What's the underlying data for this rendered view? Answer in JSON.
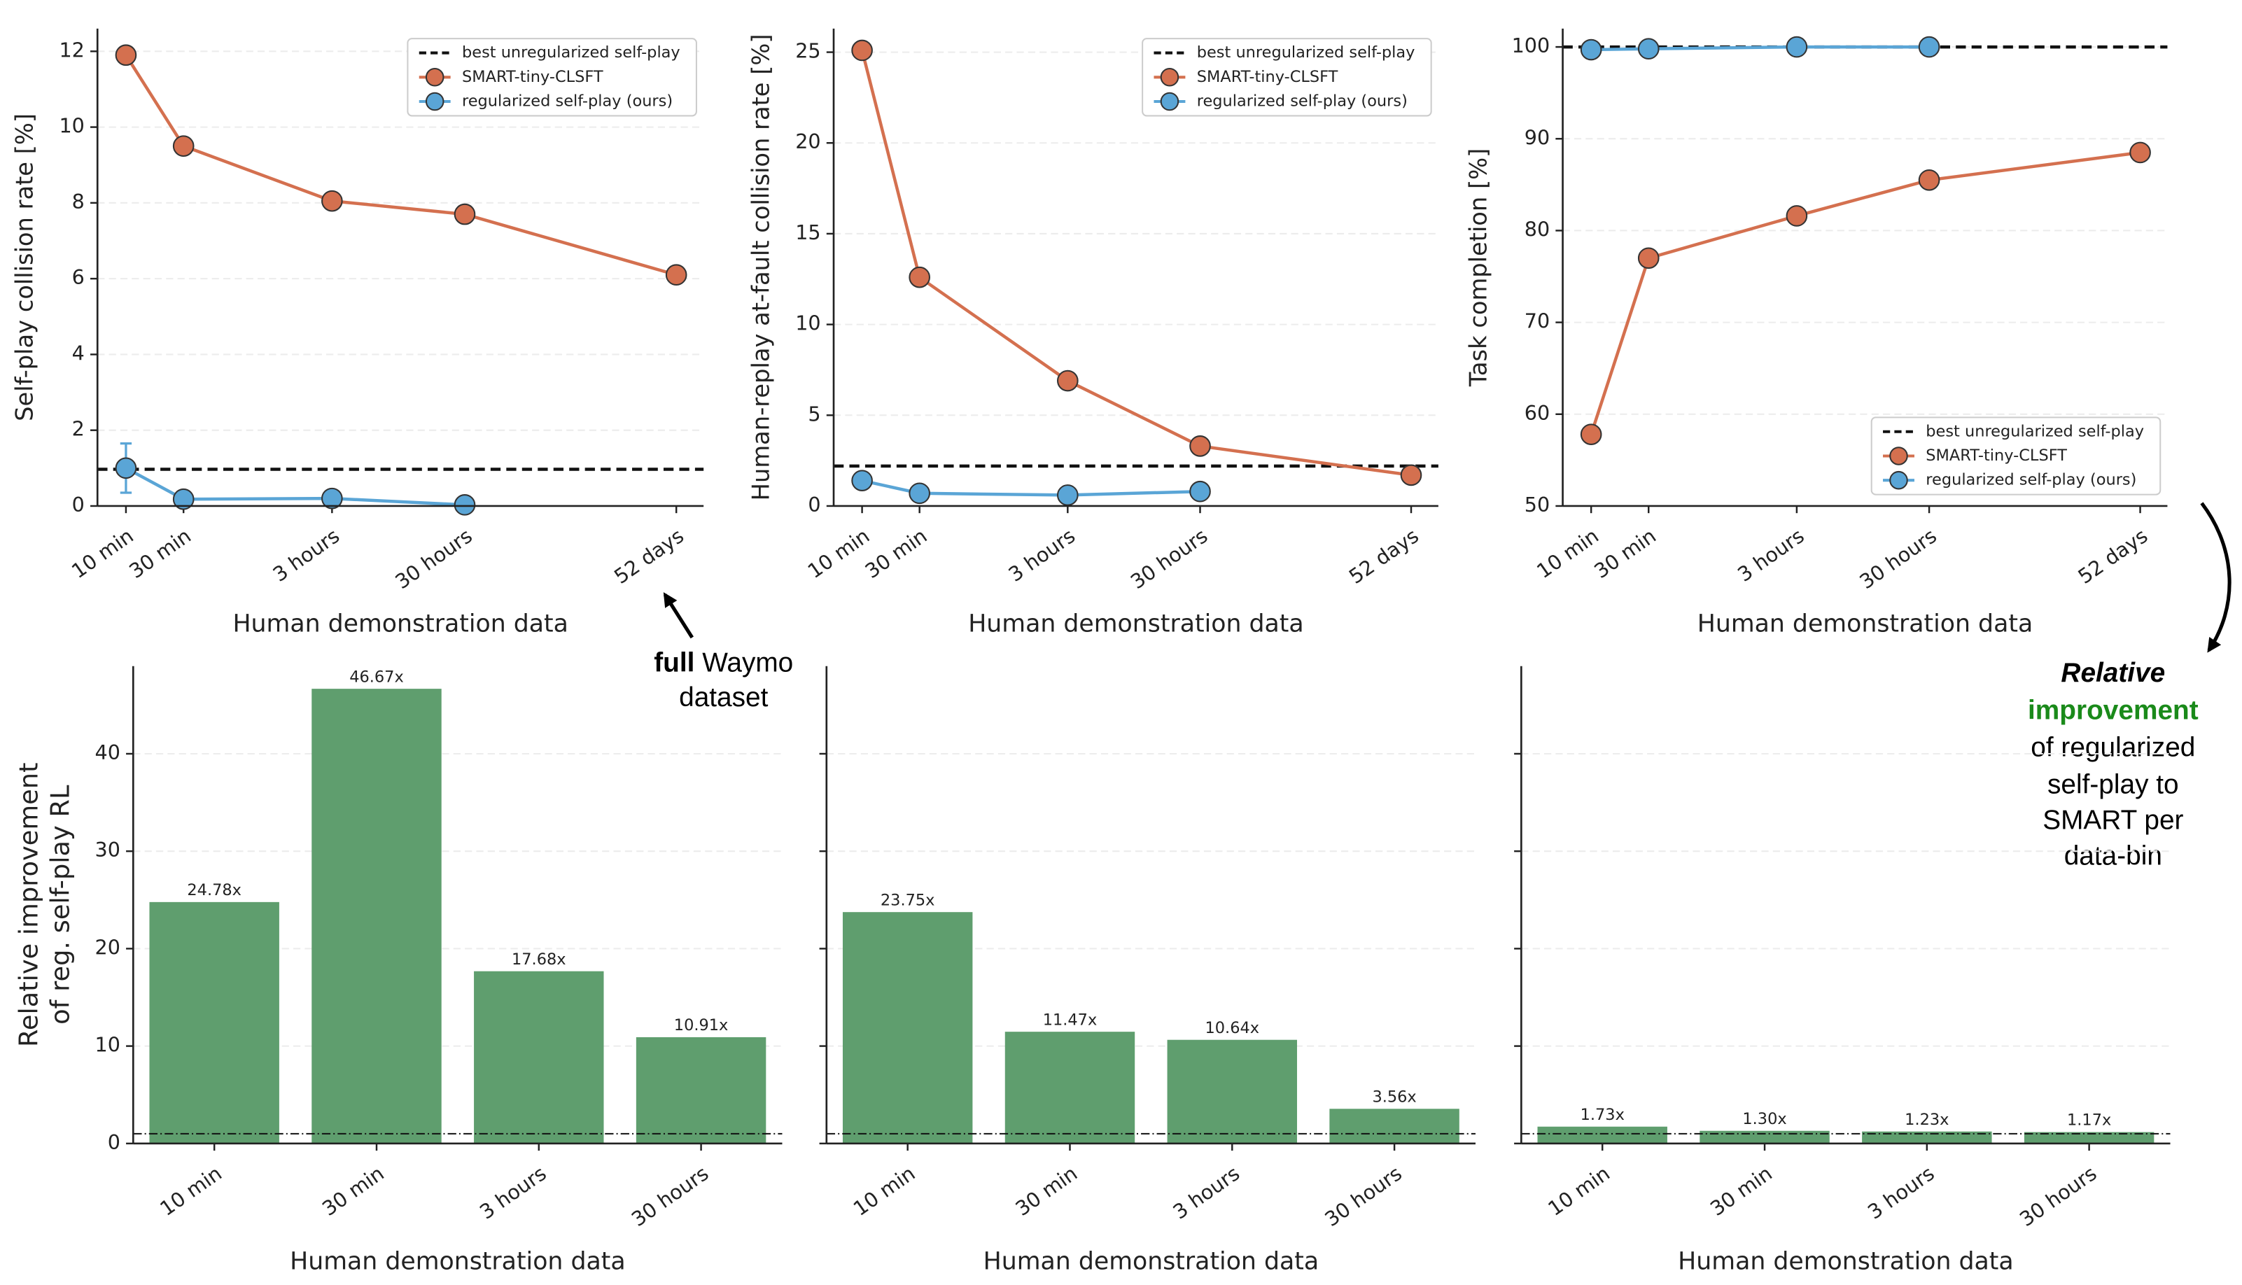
{
  "chart_data": [
    {
      "type": "line",
      "ylabel": "Self-play collision rate [%]",
      "xlabel": "Human demonstration data",
      "categories": [
        "10 min",
        "30 min",
        "3 hours",
        "30 hours",
        "52 days"
      ],
      "ylim": [
        0,
        12.6
      ],
      "yticks": [
        0,
        2,
        4,
        6,
        8,
        10,
        12
      ],
      "grid": true,
      "legend": "upper right",
      "reference": {
        "name": "best unregularized self-play",
        "value": 0.97,
        "color": "#111111"
      },
      "series": [
        {
          "name": "SMART-tiny-CLSFT",
          "color": "#d4704f",
          "values": [
            11.9,
            9.5,
            8.05,
            7.7,
            6.1
          ]
        },
        {
          "name": "regularized self-play (ours)",
          "color": "#5aa5d6",
          "values": [
            1.0,
            0.18,
            0.2,
            0.03,
            null
          ],
          "errors": [
            0.65,
            null,
            null,
            null,
            null
          ]
        }
      ]
    },
    {
      "type": "line",
      "ylabel": "Human-replay at-fault collision rate [%]",
      "xlabel": "Human demonstration data",
      "categories": [
        "10 min",
        "30 min",
        "3 hours",
        "30 hours",
        "52 days"
      ],
      "ylim": [
        0,
        26.3
      ],
      "yticks": [
        0,
        5,
        10,
        15,
        20,
        25
      ],
      "grid": true,
      "legend": "upper right",
      "reference": {
        "name": "best unregularized self-play",
        "value": 2.2,
        "color": "#111111"
      },
      "series": [
        {
          "name": "SMART-tiny-CLSFT",
          "color": "#d4704f",
          "values": [
            25.1,
            12.6,
            6.9,
            3.3,
            1.7
          ]
        },
        {
          "name": "regularized self-play (ours)",
          "color": "#5aa5d6",
          "values": [
            1.4,
            0.7,
            0.6,
            0.8,
            null
          ]
        }
      ]
    },
    {
      "type": "line",
      "ylabel": "Task completion [%]",
      "xlabel": "Human demonstration data",
      "categories": [
        "10 min",
        "30 min",
        "3 hours",
        "30 hours",
        "52 days"
      ],
      "ylim": [
        50,
        102
      ],
      "yticks": [
        50,
        60,
        70,
        80,
        90,
        100
      ],
      "grid": true,
      "legend": "lower right",
      "reference": {
        "name": "best unregularized self-play",
        "value": 100,
        "color": "#111111"
      },
      "series": [
        {
          "name": "SMART-tiny-CLSFT",
          "color": "#d4704f",
          "values": [
            57.8,
            77,
            81.6,
            85.5,
            88.5
          ]
        },
        {
          "name": "regularized self-play (ours)",
          "color": "#5aa5d6",
          "values": [
            99.7,
            99.8,
            100,
            100,
            null
          ]
        }
      ]
    },
    {
      "type": "bar",
      "ylabel": [
        "Relative improvement",
        "of reg. self-play RL"
      ],
      "xlabel": "Human demonstration data",
      "categories": [
        "10 min",
        "30 min",
        "3 hours",
        "30 hours"
      ],
      "color": "#5f9e6e",
      "values": [
        24.78,
        46.67,
        17.68,
        10.91
      ],
      "value_labels": [
        "24.78x",
        "46.67x",
        "17.68x",
        "10.91x"
      ],
      "reference_line": 1,
      "ylim": [
        0,
        49
      ],
      "yticks": [
        0,
        10,
        20,
        30,
        40
      ],
      "grid": true,
      "show_ytick_labels": true
    },
    {
      "type": "bar",
      "xlabel": "Human demonstration data",
      "categories": [
        "10 min",
        "30 min",
        "3 hours",
        "30 hours"
      ],
      "color": "#5f9e6e",
      "values": [
        23.75,
        11.47,
        10.64,
        3.56
      ],
      "value_labels": [
        "23.75x",
        "11.47x",
        "10.64x",
        "3.56x"
      ],
      "reference_line": 1,
      "ylim": [
        0,
        49
      ],
      "yticks": [
        0,
        10,
        20,
        30,
        40
      ],
      "grid": true,
      "show_ytick_labels": false
    },
    {
      "type": "bar",
      "xlabel": "Human demonstration data",
      "categories": [
        "10 min",
        "30 min",
        "3 hours",
        "30 hours"
      ],
      "color": "#5f9e6e",
      "values": [
        1.73,
        1.3,
        1.23,
        1.17
      ],
      "value_labels": [
        "1.73x",
        "1.30x",
        "1.23x",
        "1.17x"
      ],
      "reference_line": 1,
      "ylim": [
        0,
        49
      ],
      "yticks": [
        0,
        10,
        20,
        30,
        40
      ],
      "grid": true,
      "show_ytick_labels": false
    }
  ],
  "annotation_left": {
    "bold": "full",
    "rest": [
      "Waymo",
      "dataset"
    ]
  },
  "annotation_right": {
    "bold_italic": "Relative",
    "green": "improvement",
    "rest": [
      "of regularized",
      "self-play to",
      "SMART per",
      "data-bin"
    ]
  }
}
